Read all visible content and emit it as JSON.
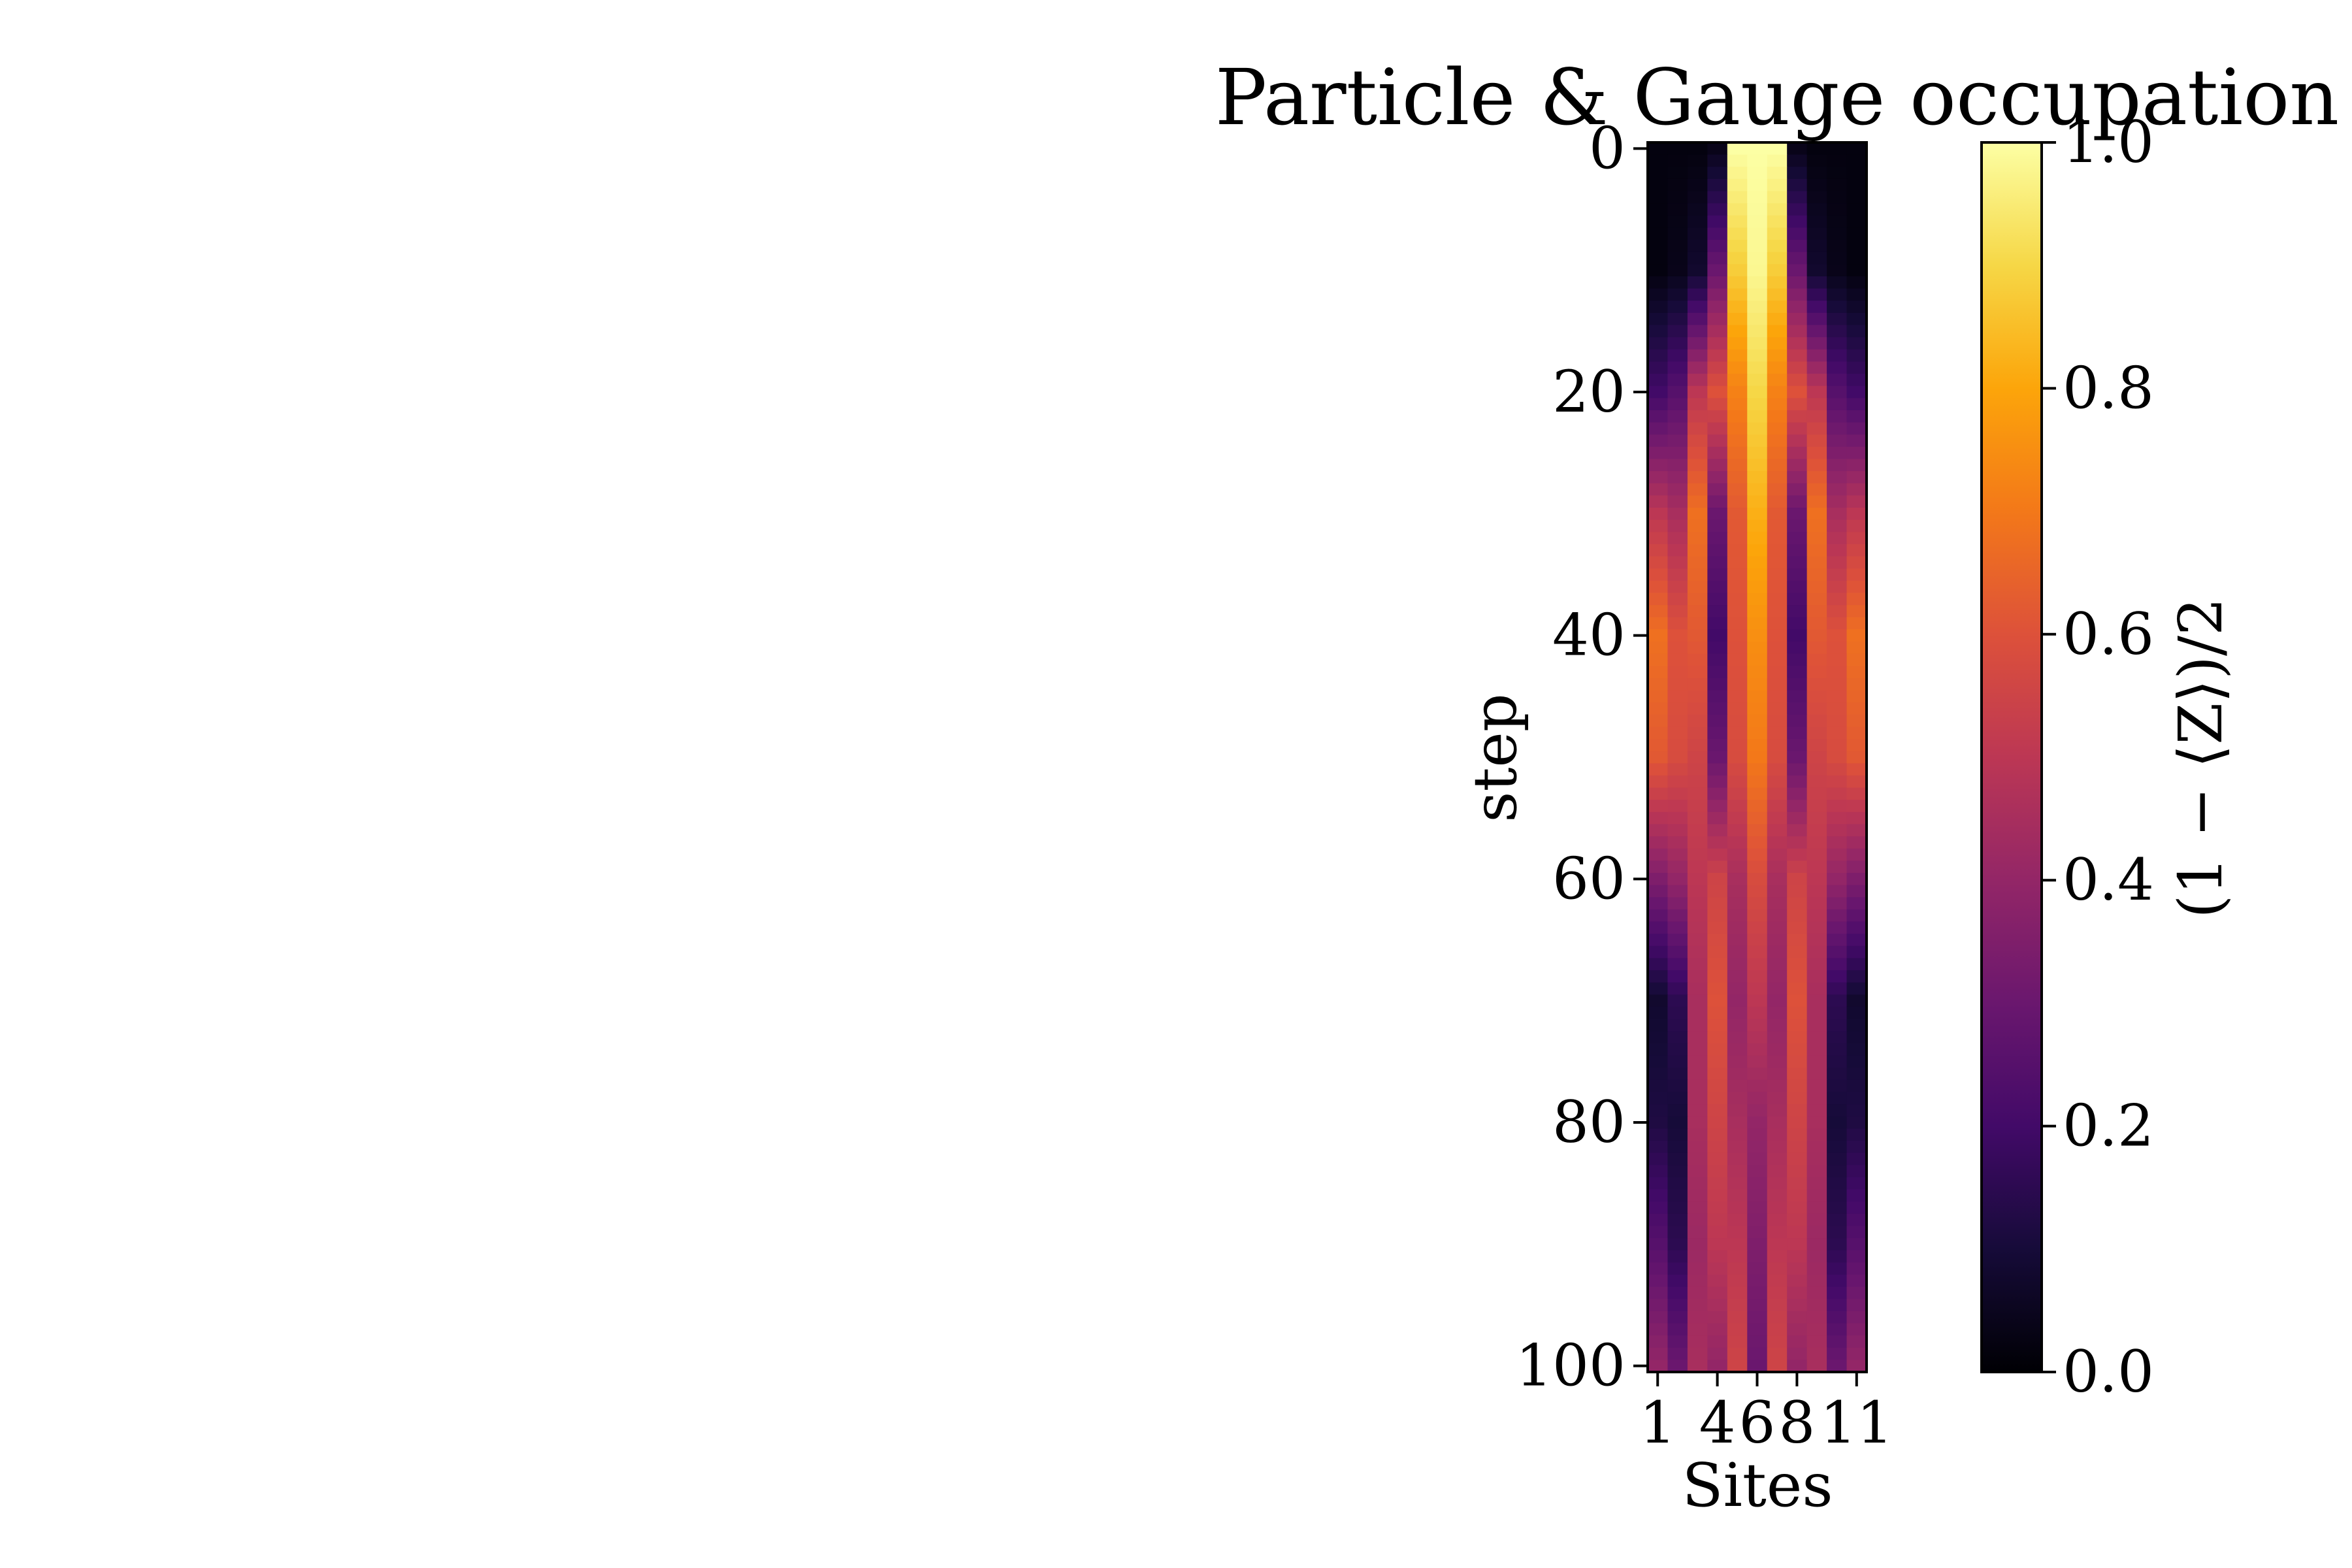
{
  "chart_data": {
    "type": "heatmap",
    "title": "Particle & Gauge occupation",
    "xlabel": "Sites",
    "ylabel": "step",
    "colorbar_label": "(1 − ⟨Z⟩)/2",
    "colormap": "inferno",
    "color_range": [
      0.0,
      1.0
    ],
    "x_ticks": [
      1,
      4,
      6,
      8,
      11
    ],
    "x_tick_labels": [
      "1",
      "4",
      "6",
      "8",
      "11"
    ],
    "y_ticks": [
      0,
      20,
      40,
      60,
      80,
      100
    ],
    "y_tick_labels": [
      "0",
      "20",
      "40",
      "60",
      "80",
      "100"
    ],
    "colorbar_ticks": [
      0.0,
      0.2,
      0.4,
      0.6,
      0.8,
      1.0
    ],
    "colorbar_tick_labels": [
      "0.0",
      "0.2",
      "0.4",
      "0.6",
      "0.8",
      "1.0"
    ],
    "sites": [
      1,
      2,
      3,
      4,
      5,
      6,
      7,
      8,
      9,
      10,
      11
    ],
    "steps": [
      0,
      10,
      20,
      30,
      40,
      50,
      60,
      70,
      80,
      90,
      100
    ],
    "values": [
      [
        0.02,
        0.02,
        0.02,
        0.04,
        1.0,
        1.0,
        1.0,
        0.04,
        0.02,
        0.02,
        0.02
      ],
      [
        0.02,
        0.04,
        0.08,
        0.3,
        0.88,
        0.98,
        0.88,
        0.3,
        0.08,
        0.04,
        0.02
      ],
      [
        0.2,
        0.25,
        0.5,
        0.6,
        0.72,
        0.9,
        0.72,
        0.6,
        0.5,
        0.25,
        0.2
      ],
      [
        0.5,
        0.45,
        0.68,
        0.3,
        0.62,
        0.82,
        0.62,
        0.3,
        0.68,
        0.45,
        0.5
      ],
      [
        0.68,
        0.6,
        0.62,
        0.2,
        0.6,
        0.75,
        0.6,
        0.2,
        0.62,
        0.6,
        0.68
      ],
      [
        0.62,
        0.58,
        0.55,
        0.3,
        0.58,
        0.7,
        0.58,
        0.3,
        0.55,
        0.58,
        0.62
      ],
      [
        0.35,
        0.4,
        0.5,
        0.55,
        0.45,
        0.58,
        0.45,
        0.55,
        0.5,
        0.4,
        0.35
      ],
      [
        0.08,
        0.15,
        0.45,
        0.6,
        0.4,
        0.5,
        0.4,
        0.6,
        0.45,
        0.15,
        0.08
      ],
      [
        0.12,
        0.1,
        0.45,
        0.55,
        0.45,
        0.4,
        0.45,
        0.55,
        0.45,
        0.1,
        0.12
      ],
      [
        0.25,
        0.15,
        0.42,
        0.5,
        0.5,
        0.35,
        0.5,
        0.5,
        0.42,
        0.15,
        0.25
      ],
      [
        0.4,
        0.3,
        0.45,
        0.4,
        0.55,
        0.3,
        0.55,
        0.4,
        0.45,
        0.3,
        0.4
      ]
    ]
  }
}
